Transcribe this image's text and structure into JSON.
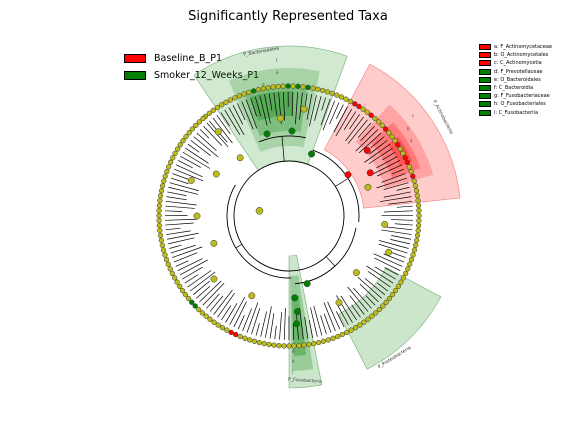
{
  "title": "Significantly Represented Taxa",
  "groups": [
    {
      "name": "Baseline_B_P1",
      "color": "#ff0000"
    },
    {
      "name": "Smoker_12_Weeks_P1",
      "color": "#008000"
    }
  ],
  "neutral_color": "#bcbc1c",
  "taxa": [
    {
      "key": "a",
      "name": "F_Actinomycetaceae",
      "group": "Baseline_B_P1"
    },
    {
      "key": "b",
      "name": "O_Actinomycetales",
      "group": "Baseline_B_P1"
    },
    {
      "key": "c",
      "name": "C_Actinomycetia",
      "group": "Baseline_B_P1"
    },
    {
      "key": "d",
      "name": "F_Prevotellaceae",
      "group": "Smoker_12_Weeks_P1"
    },
    {
      "key": "e",
      "name": "O_Bacteroidales",
      "group": "Smoker_12_Weeks_P1"
    },
    {
      "key": "f",
      "name": "C_Bacteroidia",
      "group": "Smoker_12_Weeks_P1"
    },
    {
      "key": "g",
      "name": "F_Fusobacteriaceae",
      "group": "Smoker_12_Weeks_P1"
    },
    {
      "key": "h",
      "name": "O_Fusobacteriales",
      "group": "Smoker_12_Weeks_P1"
    },
    {
      "key": "i",
      "name": "C_Fusobacteriia",
      "group": "Smoker_12_Weeks_P1"
    }
  ],
  "taxa_legend": [
    {
      "text": "a: F_Actinomycetaceae",
      "color": "#ff0000"
    },
    {
      "text": "b: O_Actinomycetales",
      "color": "#ff0000"
    },
    {
      "text": "c: C_Actinomycetia",
      "color": "#ff0000"
    },
    {
      "text": "d: F_Prevotellaceae",
      "color": "#008000"
    },
    {
      "text": "e: O_Bacteroidales",
      "color": "#008000"
    },
    {
      "text": "f: C_Bacteroidia",
      "color": "#008000"
    },
    {
      "text": "g: F_Fusobacteriaceae",
      "color": "#008000"
    },
    {
      "text": "h: O_Fusobacteriales",
      "color": "#008000"
    },
    {
      "text": "i: C_Fusobacteriia",
      "color": "#008000"
    }
  ],
  "phylum_labels": [
    "P_Bacteroidetes",
    "P_Actinobacteria",
    "P_Proteobacteria",
    "P_Fusobacteria"
  ],
  "clade_letters": {
    "bacteroidetes": [
      "f",
      "e",
      "d"
    ],
    "actinobacteria": [
      "a",
      "b",
      "c"
    ],
    "fusobacteria": [
      "g",
      "h",
      "i"
    ]
  }
}
